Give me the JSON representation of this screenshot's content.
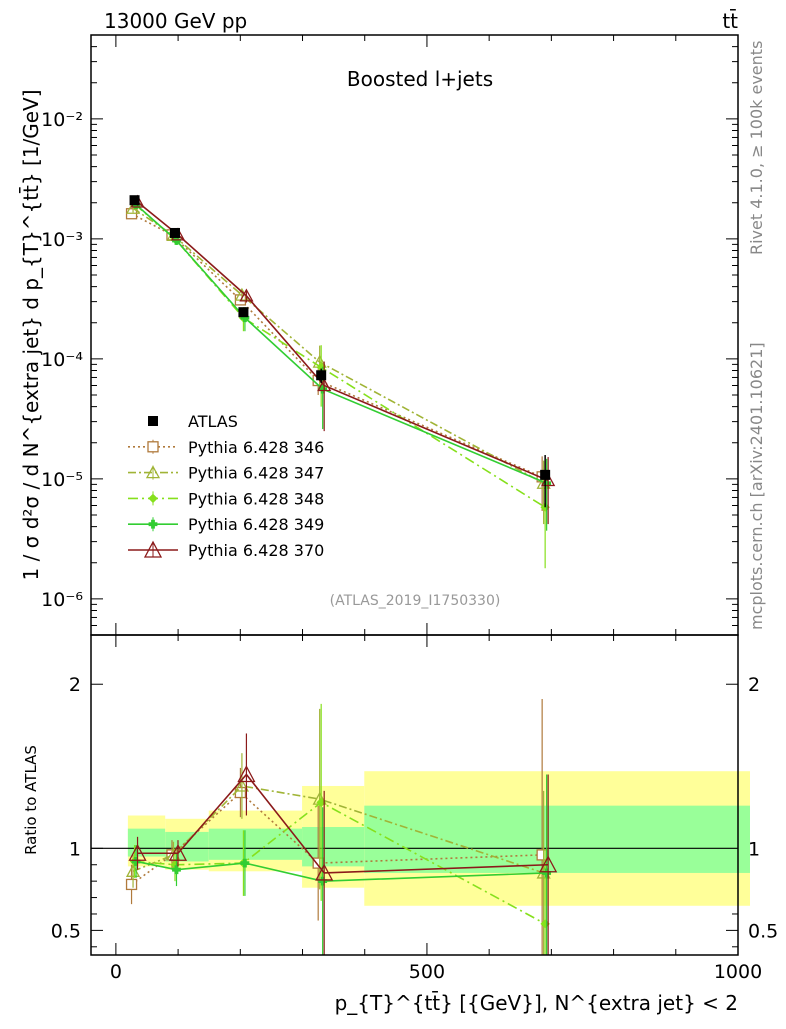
{
  "header": {
    "left": "13000 GeV pp",
    "right": "tt̄",
    "rivet": "Rivet 4.1.0, ≥ 100k events",
    "mcplots": "mcplots.cern.ch [arXiv:2401.10621]"
  },
  "chart_data": [
    {
      "type": "line",
      "title": "Boosted l+jets",
      "watermark": "(ATLAS_2019_I1750330)",
      "ylabel": "1 / σ d²σ / d N^{extra jet} d p_{T}^{tt̄} [1/GeV]",
      "yscale": "log",
      "ylim": [
        5e-07,
        0.05
      ],
      "xlim": [
        -40,
        1000
      ],
      "ytick_labels": [
        "10⁻⁶",
        "10⁻⁵",
        "10⁻⁴",
        "10⁻³",
        "10⁻²"
      ],
      "x": [
        30,
        95,
        205,
        330,
        690
      ],
      "data": {
        "name": "ATLAS",
        "values": [
          0.0021,
          0.00112,
          0.000245,
          7.3e-05,
          1.08e-05
        ],
        "err": [
          0.00018,
          8e-05,
          2e-05,
          1e-05,
          5e-06
        ]
      },
      "series": [
        {
          "name": "Pythia 6.428 346",
          "color": "#b07a3c",
          "dash": "2,3",
          "marker": "square",
          "values": [
            0.00162,
            0.00108,
            0.00031,
            6.6e-05,
            1.04e-05
          ],
          "err": [
            0.00012,
            7e-05,
            3e-05,
            1.6e-05,
            5e-06
          ]
        },
        {
          "name": "Pythia 6.428 347",
          "color": "#a0b436",
          "dash": "8,3,2,3",
          "marker": "triangle",
          "values": [
            0.0018,
            0.00107,
            0.00034,
            9.4e-05,
            9.2e-06
          ],
          "err": [
            0.00014,
            7e-05,
            3e-05,
            3.5e-05,
            5e-06
          ]
        },
        {
          "name": "Pythia 6.428 348",
          "color": "#86e01c",
          "dash": "10,4,2,4",
          "marker": "diamond",
          "values": [
            0.00195,
            0.001,
            0.00022,
            8.5e-05,
            5.8e-06
          ],
          "err": [
            0.00015,
            8e-05,
            5e-05,
            4.5e-05,
            4e-06
          ]
        },
        {
          "name": "Pythia 6.428 349",
          "color": "#32cd32",
          "dash": "",
          "marker": "cross",
          "values": [
            0.00193,
            0.00097,
            0.00022,
            5.6e-05,
            9.2e-06
          ],
          "err": [
            0.00014,
            8e-05,
            5e-05,
            3e-05,
            5.5e-06
          ]
        },
        {
          "name": "Pythia 6.428 370",
          "color": "#8b1a1a",
          "dash": "",
          "marker": "triangle",
          "values": [
            0.00203,
            0.00108,
            0.000335,
            6e-05,
            9.7e-06
          ],
          "err": [
            0.00014,
            7e-05,
            4e-05,
            3.5e-05,
            5.5e-06
          ]
        }
      ]
    },
    {
      "type": "line",
      "ylabel": "Ratio to ATLAS",
      "xlabel": "p_{T}^{tt̄} [{GeV}], N^{extra jet} < 2",
      "ylim": [
        0.35,
        2.3
      ],
      "xlim": [
        -40,
        1000
      ],
      "xticks": [
        0,
        500,
        1000
      ],
      "yticks": [
        0.5,
        1,
        2
      ],
      "bands": {
        "edges": [
          0,
          60,
          130,
          280,
          380,
          1000
        ],
        "inner": [
          [
            0.95,
            1.12
          ],
          [
            0.92,
            1.1
          ],
          [
            0.93,
            1.12
          ],
          [
            0.89,
            1.13
          ],
          [
            0.85,
            1.26
          ]
        ],
        "outer": [
          [
            0.89,
            1.2
          ],
          [
            0.87,
            1.18
          ],
          [
            0.86,
            1.23
          ],
          [
            0.76,
            1.38
          ],
          [
            0.65,
            1.47
          ]
        ]
      },
      "series": [
        {
          "name": "Pythia 6.428 346",
          "values": [
            0.78,
            0.96,
            1.34,
            0.91,
            0.96
          ],
          "err": [
            0.12,
            0.09,
            0.15,
            0.35,
            0.95
          ]
        },
        {
          "name": "Pythia 6.428 347",
          "values": [
            0.86,
            0.96,
            1.38,
            1.3,
            0.85
          ],
          "err": [
            0.1,
            0.08,
            0.2,
            0.55,
            0.5
          ]
        },
        {
          "name": "Pythia 6.428 348",
          "values": [
            0.92,
            0.9,
            0.91,
            1.28,
            0.54
          ],
          "err": [
            0.1,
            0.1,
            0.2,
            0.6,
            0.45
          ]
        },
        {
          "name": "Pythia 6.428 349",
          "values": [
            0.92,
            0.87,
            0.91,
            0.8,
            0.85
          ],
          "err": [
            0.1,
            0.1,
            0.2,
            0.45,
            0.6
          ]
        },
        {
          "name": "Pythia 6.428 370",
          "values": [
            0.97,
            0.97,
            1.45,
            0.85,
            0.9
          ],
          "err": [
            0.1,
            0.08,
            0.25,
            0.5,
            0.55
          ]
        }
      ]
    }
  ]
}
